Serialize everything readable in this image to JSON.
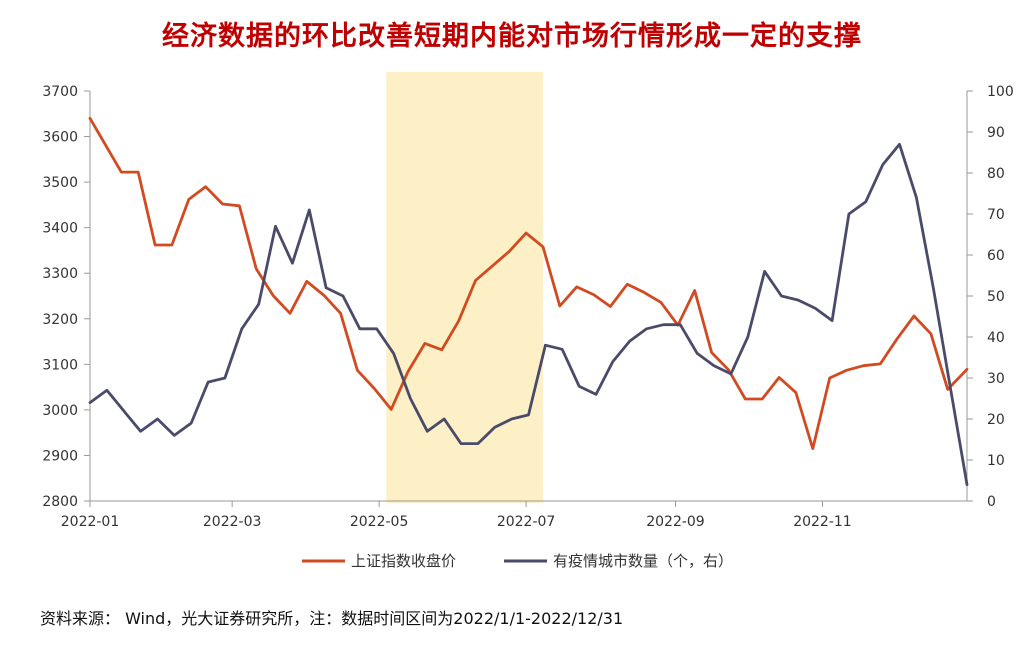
{
  "title": "经济数据的环比改善短期内能对市场行情形成一定的支撑",
  "source": "资料来源： Wind，光大证券研究所，注：数据时间区间为2022/1/1-2022/12/31",
  "chart_data": {
    "type": "line",
    "title": "经济数据的环比改善短期内能对市场行情形成一定的支撑",
    "x_ticks": [
      "2022-01",
      "2022-03",
      "2022-05",
      "2022-07",
      "2022-09",
      "2022-11"
    ],
    "y_left": {
      "ylim": [
        2800,
        3700
      ],
      "ticks": [
        "2800",
        "2900",
        "3000",
        "3100",
        "3200",
        "3300",
        "3400",
        "3500",
        "3600",
        "3700"
      ]
    },
    "y_right": {
      "ylim": [
        0,
        100
      ],
      "ticks": [
        "0",
        "10",
        "20",
        "30",
        "40",
        "50",
        "60",
        "70",
        "80",
        "90",
        "100"
      ]
    },
    "highlight_band": {
      "start": "2022-05-04",
      "end": "2022-07-08",
      "color": "#fdefc6"
    },
    "colors": {
      "index": "#d24a1f",
      "cities": "#4a4a6a"
    },
    "series": [
      {
        "name": "上证指数收盘价",
        "axis": "left",
        "points": [
          [
            "2022-01-01",
            3640
          ],
          [
            "2022-01-14",
            3522
          ],
          [
            "2022-01-21",
            3522
          ],
          [
            "2022-01-28",
            3362
          ],
          [
            "2022-02-04",
            3362
          ],
          [
            "2022-02-11",
            3462
          ],
          [
            "2022-02-18",
            3490
          ],
          [
            "2022-02-25",
            3452
          ],
          [
            "2022-03-04",
            3448
          ],
          [
            "2022-03-11",
            3310
          ],
          [
            "2022-03-18",
            3251
          ],
          [
            "2022-03-25",
            3212
          ],
          [
            "2022-04-01",
            3282
          ],
          [
            "2022-04-08",
            3252
          ],
          [
            "2022-04-15",
            3212
          ],
          [
            "2022-04-22",
            3087
          ],
          [
            "2022-04-29",
            3047
          ],
          [
            "2022-05-06",
            3001
          ],
          [
            "2022-05-13",
            3084
          ],
          [
            "2022-05-20",
            3146
          ],
          [
            "2022-05-27",
            3132
          ],
          [
            "2022-06-03",
            3195
          ],
          [
            "2022-06-10",
            3284
          ],
          [
            "2022-06-17",
            3316
          ],
          [
            "2022-06-24",
            3348
          ],
          [
            "2022-07-01",
            3388
          ],
          [
            "2022-07-08",
            3358
          ],
          [
            "2022-07-15",
            3228
          ],
          [
            "2022-07-22",
            3270
          ],
          [
            "2022-07-29",
            3253
          ],
          [
            "2022-08-05",
            3227
          ],
          [
            "2022-08-12",
            3276
          ],
          [
            "2022-08-19",
            3258
          ],
          [
            "2022-08-26",
            3236
          ],
          [
            "2022-09-02",
            3186
          ],
          [
            "2022-09-09",
            3262
          ],
          [
            "2022-09-16",
            3126
          ],
          [
            "2022-09-23",
            3088
          ],
          [
            "2022-09-30",
            3024
          ],
          [
            "2022-10-07",
            3024
          ],
          [
            "2022-10-14",
            3071
          ],
          [
            "2022-10-21",
            3038
          ],
          [
            "2022-10-28",
            2915
          ],
          [
            "2022-11-04",
            3070
          ],
          [
            "2022-11-11",
            3087
          ],
          [
            "2022-11-18",
            3097
          ],
          [
            "2022-11-25",
            3101
          ],
          [
            "2022-12-02",
            3156
          ],
          [
            "2022-12-09",
            3206
          ],
          [
            "2022-12-16",
            3167
          ],
          [
            "2022-12-23",
            3045
          ],
          [
            "2022-12-31",
            3089
          ]
        ]
      },
      {
        "name": "有疫情城市数量（个，右）",
        "axis": "right",
        "points": [
          [
            "2022-01-01",
            24
          ],
          [
            "2022-01-08",
            27
          ],
          [
            "2022-01-15",
            22
          ],
          [
            "2022-01-22",
            17
          ],
          [
            "2022-01-29",
            20
          ],
          [
            "2022-02-05",
            16
          ],
          [
            "2022-02-12",
            19
          ],
          [
            "2022-02-19",
            29
          ],
          [
            "2022-02-26",
            30
          ],
          [
            "2022-03-05",
            42
          ],
          [
            "2022-03-12",
            48
          ],
          [
            "2022-03-19",
            67
          ],
          [
            "2022-03-26",
            58
          ],
          [
            "2022-04-02",
            71
          ],
          [
            "2022-04-09",
            52
          ],
          [
            "2022-04-16",
            50
          ],
          [
            "2022-04-23",
            42
          ],
          [
            "2022-04-30",
            42
          ],
          [
            "2022-05-07",
            36
          ],
          [
            "2022-05-14",
            25
          ],
          [
            "2022-05-21",
            17
          ],
          [
            "2022-05-28",
            20
          ],
          [
            "2022-06-04",
            14
          ],
          [
            "2022-06-11",
            14
          ],
          [
            "2022-06-18",
            18
          ],
          [
            "2022-06-25",
            20
          ],
          [
            "2022-07-02",
            21
          ],
          [
            "2022-07-09",
            38
          ],
          [
            "2022-07-16",
            37
          ],
          [
            "2022-07-23",
            28
          ],
          [
            "2022-07-30",
            26
          ],
          [
            "2022-08-06",
            34
          ],
          [
            "2022-08-13",
            39
          ],
          [
            "2022-08-20",
            42
          ],
          [
            "2022-08-27",
            43
          ],
          [
            "2022-09-03",
            43
          ],
          [
            "2022-09-10",
            36
          ],
          [
            "2022-09-17",
            33
          ],
          [
            "2022-09-24",
            31
          ],
          [
            "2022-10-01",
            40
          ],
          [
            "2022-10-08",
            56
          ],
          [
            "2022-10-15",
            50
          ],
          [
            "2022-10-22",
            49
          ],
          [
            "2022-10-29",
            47
          ],
          [
            "2022-11-05",
            44
          ],
          [
            "2022-11-12",
            70
          ],
          [
            "2022-11-19",
            73
          ],
          [
            "2022-11-26",
            82
          ],
          [
            "2022-12-03",
            87
          ],
          [
            "2022-12-10",
            74
          ],
          [
            "2022-12-17",
            52
          ],
          [
            "2022-12-24",
            28
          ],
          [
            "2022-12-31",
            4
          ]
        ]
      }
    ],
    "legend_position": "bottom",
    "grid": false
  }
}
